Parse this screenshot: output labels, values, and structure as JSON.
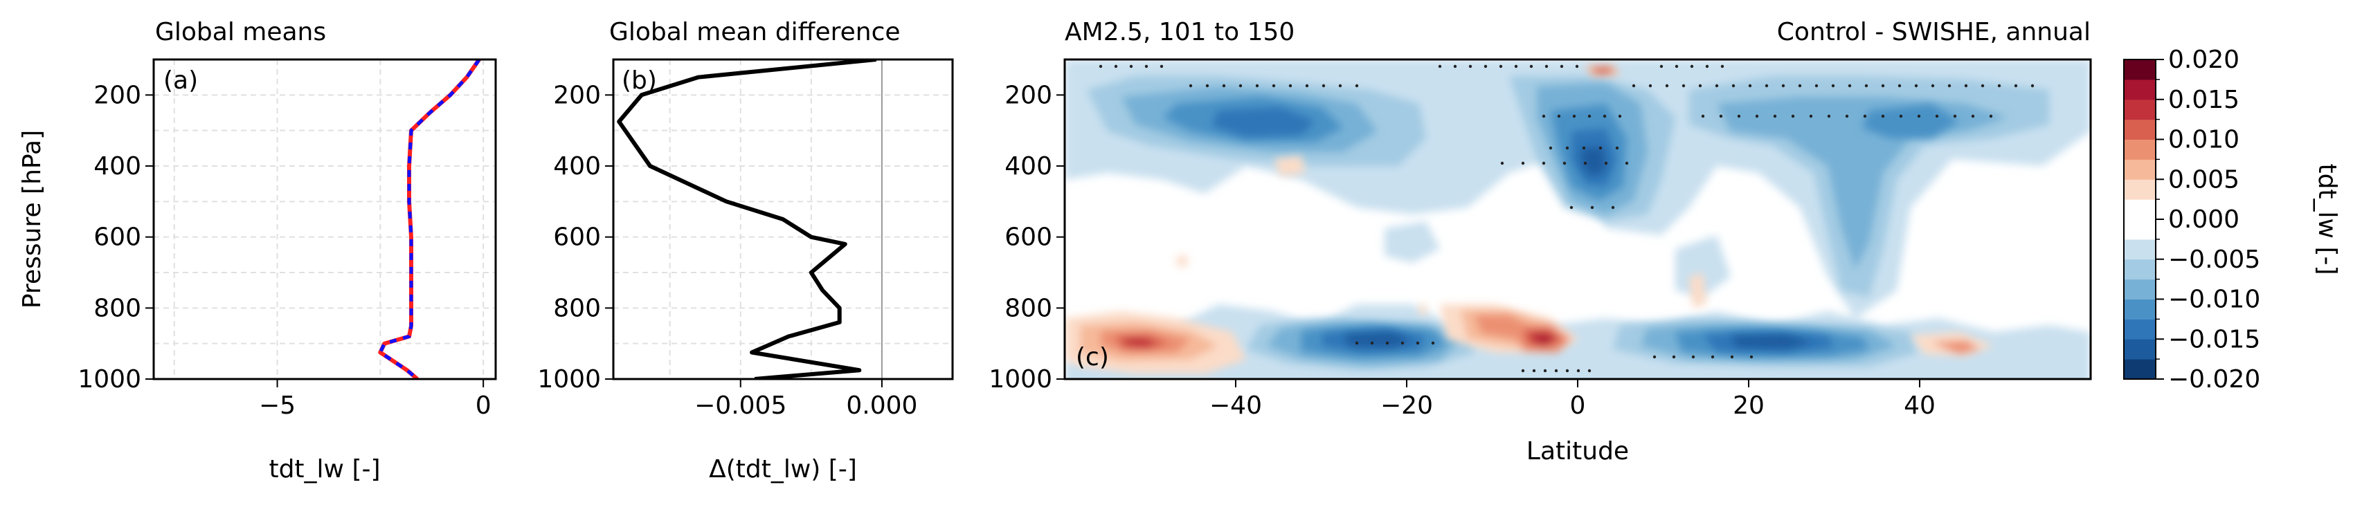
{
  "chart_data": [
    {
      "type": "line",
      "title": "Global means",
      "panel_label": "(a)",
      "xlabel": "tdt_lw [-]",
      "ylabel": "Pressure [hPa]",
      "xlim": [
        -8.0,
        0.3
      ],
      "ylim": [
        1000,
        100
      ],
      "xticks": [
        -5,
        0
      ],
      "xtick_labels": [
        "−5",
        "0"
      ],
      "yticks": [
        200,
        400,
        600,
        800,
        1000
      ],
      "ytick_labels": [
        "200",
        "400",
        "600",
        "800",
        "1000"
      ],
      "grid": true,
      "series": [
        {
          "color": "#ff2020",
          "dash": "solid",
          "x": [
            -0.1,
            -0.4,
            -0.8,
            -1.3,
            -1.75,
            -1.8,
            -1.8,
            -1.75,
            -1.75,
            -1.75,
            -1.75,
            -1.8,
            -2.4,
            -2.5,
            -1.85,
            -1.6
          ],
          "y": [
            100,
            150,
            200,
            250,
            300,
            400,
            500,
            600,
            700,
            800,
            850,
            880,
            900,
            925,
            975,
            1000
          ]
        },
        {
          "color": "#1010ff",
          "dash": "dashed",
          "x": [
            -0.1,
            -0.4,
            -0.8,
            -1.3,
            -1.75,
            -1.8,
            -1.8,
            -1.75,
            -1.75,
            -1.75,
            -1.75,
            -1.8,
            -2.4,
            -2.5,
            -1.85,
            -1.6
          ],
          "y": [
            100,
            150,
            200,
            250,
            300,
            400,
            500,
            600,
            700,
            800,
            850,
            880,
            900,
            925,
            975,
            1000
          ]
        }
      ]
    },
    {
      "type": "line",
      "title": "Global mean difference",
      "panel_label": "(b)",
      "xlabel": "Δ(tdt_lw) [-]",
      "xlim": [
        -0.0095,
        0.0025
      ],
      "ylim": [
        1000,
        100
      ],
      "xticks": [
        -0.005,
        0.0
      ],
      "xtick_labels": [
        "−0.005",
        "0.000"
      ],
      "yticks": [
        200,
        400,
        600,
        800,
        1000
      ],
      "ytick_labels": [
        "200",
        "400",
        "600",
        "800",
        "1000"
      ],
      "grid": true,
      "zero_line": 0.0,
      "series": [
        {
          "color": "#000000",
          "x": [
            -0.0002,
            -0.0065,
            -0.0085,
            -0.0093,
            -0.0082,
            -0.0055,
            -0.0035,
            -0.0025,
            -0.0013,
            -0.0025,
            -0.0021,
            -0.0015,
            -0.0015,
            -0.0033,
            -0.0046,
            -0.0008,
            -0.0045
          ],
          "y": [
            100,
            150,
            200,
            275,
            400,
            500,
            550,
            600,
            620,
            700,
            750,
            800,
            840,
            880,
            925,
            975,
            1000
          ]
        }
      ]
    },
    {
      "type": "heatmap",
      "title": "AM2.5, 101 to 150",
      "title_right": "Control - SWISHE, annual",
      "panel_label": "(c)",
      "xlabel": "Latitude",
      "xlim": [
        -60,
        60
      ],
      "ylim": [
        1000,
        100
      ],
      "xticks": [
        -40,
        -20,
        0,
        20,
        40
      ],
      "xtick_labels": [
        "−40",
        "−20",
        "0",
        "20",
        "40"
      ],
      "yticks": [
        200,
        400,
        600,
        800,
        1000
      ],
      "ytick_labels": [
        "200",
        "400",
        "600",
        "800",
        "1000"
      ],
      "colorbar": {
        "label": "tdt_lw [-]",
        "vmin": -0.02,
        "vmax": 0.02,
        "ticks": [
          0.02,
          0.015,
          0.01,
          0.005,
          0.0,
          -0.005,
          -0.01,
          -0.015,
          -0.02
        ],
        "tick_labels": [
          "0.020",
          "0.015",
          "0.010",
          "0.005",
          "0.000",
          "−0.005",
          "−0.010",
          "−0.015",
          "−0.020"
        ],
        "colors": [
          "#0d3b72",
          "#1c5c9e",
          "#2f76b8",
          "#4a92c6",
          "#77b1d6",
          "#a3cbe3",
          "#c9e0ef",
          "#ffffff",
          "#ffffff",
          "#fbdcc8",
          "#f6b99a",
          "#ec9072",
          "#d9604f",
          "#c1323b",
          "#a81530",
          "#67001f"
        ]
      }
    }
  ]
}
